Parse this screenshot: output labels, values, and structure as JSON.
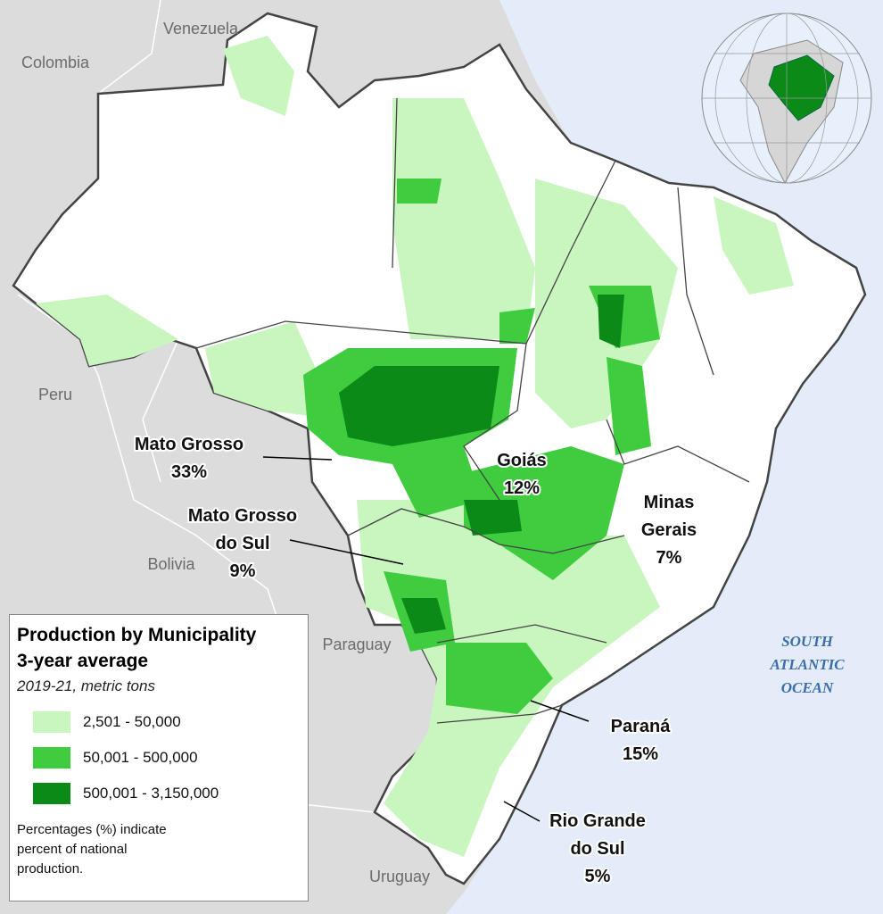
{
  "countries": [
    {
      "label": "Venezuela"
    },
    {
      "label": "Colombia"
    },
    {
      "label": "Peru"
    },
    {
      "label": "Bolivia"
    },
    {
      "label": "Paraguay"
    },
    {
      "label": "Uruguay"
    }
  ],
  "ocean": {
    "lines": [
      "SOUTH",
      "ATLANTIC",
      "OCEAN"
    ]
  },
  "states": [
    {
      "name_lines": [
        "Mato Grosso"
      ],
      "share": "33%"
    },
    {
      "name_lines": [
        "Goiás"
      ],
      "share": "12%"
    },
    {
      "name_lines": [
        "Mato Grosso",
        "do Sul"
      ],
      "share": "9%"
    },
    {
      "name_lines": [
        "Minas",
        "Gerais"
      ],
      "share": "7%"
    },
    {
      "name_lines": [
        "Paraná"
      ],
      "share": "15%"
    },
    {
      "name_lines": [
        "Rio Grande",
        "do Sul"
      ],
      "share": "5%"
    }
  ],
  "legend": {
    "title_lines": [
      "Production by Municipality",
      "3-year average"
    ],
    "subtitle": "2019-21, metric tons",
    "items": [
      {
        "label": "2,501 - 50,000",
        "color": "#c9f5bf"
      },
      {
        "label": "50,001 - 500,000",
        "color": "#3fcc3f"
      },
      {
        "label": "500,001 - 3,150,000",
        "color": "#0b8a17"
      }
    ],
    "note_lines": [
      "Percentages (%) indicate",
      "percent of national",
      "production."
    ]
  }
}
